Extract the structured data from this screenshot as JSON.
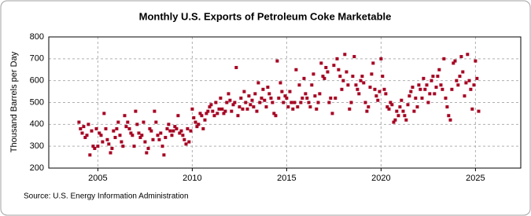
{
  "chart_data": {
    "type": "scatter",
    "title": "Monthly U.S. Exports of Petroleum Coke Marketable",
    "y_label": "Thousand Barrels per Day",
    "source": "Source: U.S. Energy Information Administration",
    "color": "#a50021",
    "grid": true,
    "xlim": [
      2002.4,
      2027.4
    ],
    "xticks": [
      2005,
      2010,
      2015,
      2020,
      2025
    ],
    "ylim": [
      200,
      800
    ],
    "yticks": [
      200,
      300,
      400,
      500,
      600,
      700,
      800
    ],
    "x": [
      2004,
      2004.08,
      2004.17,
      2004.25,
      2004.33,
      2004.42,
      2004.5,
      2004.58,
      2004.67,
      2004.75,
      2004.83,
      2004.92,
      2005,
      2005.08,
      2005.17,
      2005.25,
      2005.33,
      2005.42,
      2005.5,
      2005.58,
      2005.67,
      2005.75,
      2005.83,
      2005.92,
      2006,
      2006.08,
      2006.17,
      2006.25,
      2006.33,
      2006.42,
      2006.5,
      2006.58,
      2006.67,
      2006.75,
      2006.83,
      2006.92,
      2007,
      2007.08,
      2007.17,
      2007.25,
      2007.33,
      2007.42,
      2007.5,
      2007.58,
      2007.67,
      2007.75,
      2007.83,
      2007.92,
      2008,
      2008.08,
      2008.17,
      2008.25,
      2008.33,
      2008.42,
      2008.5,
      2008.58,
      2008.67,
      2008.75,
      2008.83,
      2008.92,
      2009,
      2009.08,
      2009.17,
      2009.25,
      2009.33,
      2009.42,
      2009.5,
      2009.58,
      2009.67,
      2009.75,
      2009.83,
      2009.92,
      2010,
      2010.08,
      2010.17,
      2010.25,
      2010.33,
      2010.42,
      2010.5,
      2010.58,
      2010.67,
      2010.75,
      2010.83,
      2010.92,
      2011,
      2011.08,
      2011.17,
      2011.25,
      2011.33,
      2011.42,
      2011.5,
      2011.58,
      2011.67,
      2011.75,
      2011.83,
      2011.92,
      2012,
      2012.08,
      2012.17,
      2012.25,
      2012.33,
      2012.42,
      2012.5,
      2012.58,
      2012.67,
      2012.75,
      2012.83,
      2012.92,
      2013,
      2013.08,
      2013.17,
      2013.25,
      2013.33,
      2013.42,
      2013.5,
      2013.58,
      2013.67,
      2013.75,
      2013.83,
      2013.92,
      2014,
      2014.08,
      2014.17,
      2014.25,
      2014.33,
      2014.42,
      2014.5,
      2014.58,
      2014.67,
      2014.75,
      2014.83,
      2014.92,
      2015,
      2015.08,
      2015.17,
      2015.25,
      2015.33,
      2015.42,
      2015.5,
      2015.58,
      2015.67,
      2015.75,
      2015.83,
      2015.92,
      2016,
      2016.08,
      2016.17,
      2016.25,
      2016.33,
      2016.42,
      2016.5,
      2016.58,
      2016.67,
      2016.75,
      2016.83,
      2016.92,
      2017,
      2017.08,
      2017.17,
      2017.25,
      2017.33,
      2017.42,
      2017.5,
      2017.58,
      2017.67,
      2017.75,
      2017.83,
      2017.92,
      2018,
      2018.08,
      2018.17,
      2018.25,
      2018.33,
      2018.42,
      2018.5,
      2018.58,
      2018.67,
      2018.75,
      2018.83,
      2018.92,
      2019,
      2019.08,
      2019.17,
      2019.25,
      2019.33,
      2019.42,
      2019.5,
      2019.58,
      2019.67,
      2019.75,
      2019.83,
      2019.92,
      2020,
      2020.08,
      2020.17,
      2020.25,
      2020.33,
      2020.42,
      2020.5,
      2020.58,
      2020.67,
      2020.75,
      2020.83,
      2020.92,
      2021,
      2021.08,
      2021.17,
      2021.25,
      2021.33,
      2021.42,
      2021.5,
      2021.58,
      2021.67,
      2021.75,
      2021.83,
      2021.92,
      2022,
      2022.08,
      2022.17,
      2022.25,
      2022.33,
      2022.42,
      2022.5,
      2022.58,
      2022.67,
      2022.75,
      2022.83,
      2022.92,
      2023,
      2023.08,
      2023.17,
      2023.25,
      2023.33,
      2023.42,
      2023.5,
      2023.58,
      2023.67,
      2023.75,
      2023.83,
      2023.92,
      2024,
      2024.08,
      2024.17,
      2024.25,
      2024.33,
      2024.42,
      2024.5,
      2024.58,
      2024.67,
      2024.75,
      2024.83,
      2024.92,
      2025,
      2025.08,
      2025.17
    ],
    "values": [
      410,
      380,
      360,
      390,
      340,
      350,
      400,
      260,
      370,
      300,
      290,
      380,
      300,
      360,
      350,
      320,
      450,
      380,
      330,
      310,
      270,
      290,
      370,
      340,
      380,
      410,
      350,
      320,
      300,
      440,
      390,
      410,
      380,
      360,
      350,
      300,
      460,
      400,
      360,
      340,
      350,
      410,
      320,
      270,
      290,
      380,
      370,
      330,
      460,
      410,
      350,
      330,
      360,
      300,
      260,
      340,
      380,
      400,
      370,
      350,
      370,
      390,
      380,
      440,
      360,
      370,
      350,
      330,
      310,
      380,
      320,
      370,
      470,
      430,
      410,
      390,
      400,
      450,
      440,
      380,
      420,
      450,
      460,
      480,
      490,
      460,
      440,
      500,
      450,
      470,
      520,
      470,
      450,
      460,
      500,
      540,
      510,
      460,
      490,
      500,
      660,
      440,
      480,
      520,
      470,
      550,
      500,
      470,
      530,
      490,
      510,
      480,
      540,
      460,
      590,
      500,
      520,
      560,
      510,
      480,
      570,
      540,
      520,
      500,
      450,
      440,
      690,
      520,
      590,
      550,
      500,
      530,
      520,
      480,
      550,
      500,
      470,
      500,
      650,
      480,
      580,
      500,
      520,
      610,
      540,
      520,
      500,
      480,
      580,
      630,
      530,
      470,
      500,
      540,
      680,
      620,
      610,
      660,
      640,
      500,
      520,
      450,
      670,
      520,
      700,
      650,
      620,
      560,
      600,
      720,
      640,
      580,
      470,
      500,
      620,
      710,
      580,
      560,
      540,
      600,
      620,
      590,
      500,
      460,
      480,
      570,
      630,
      680,
      560,
      530,
      510,
      550,
      700,
      620,
      560,
      540,
      480,
      470,
      500,
      490,
      410,
      420,
      460,
      440,
      480,
      510,
      460,
      440,
      420,
      490,
      530,
      550,
      570,
      460,
      520,
      480,
      580,
      560,
      520,
      610,
      560,
      580,
      500,
      540,
      600,
      620,
      540,
      570,
      620,
      650,
      580,
      560,
      700,
      520,
      480,
      440,
      420,
      560,
      680,
      690,
      600,
      580,
      620,
      710,
      640,
      530,
      590,
      720,
      600,
      560,
      470,
      580,
      690,
      610,
      460
    ]
  }
}
